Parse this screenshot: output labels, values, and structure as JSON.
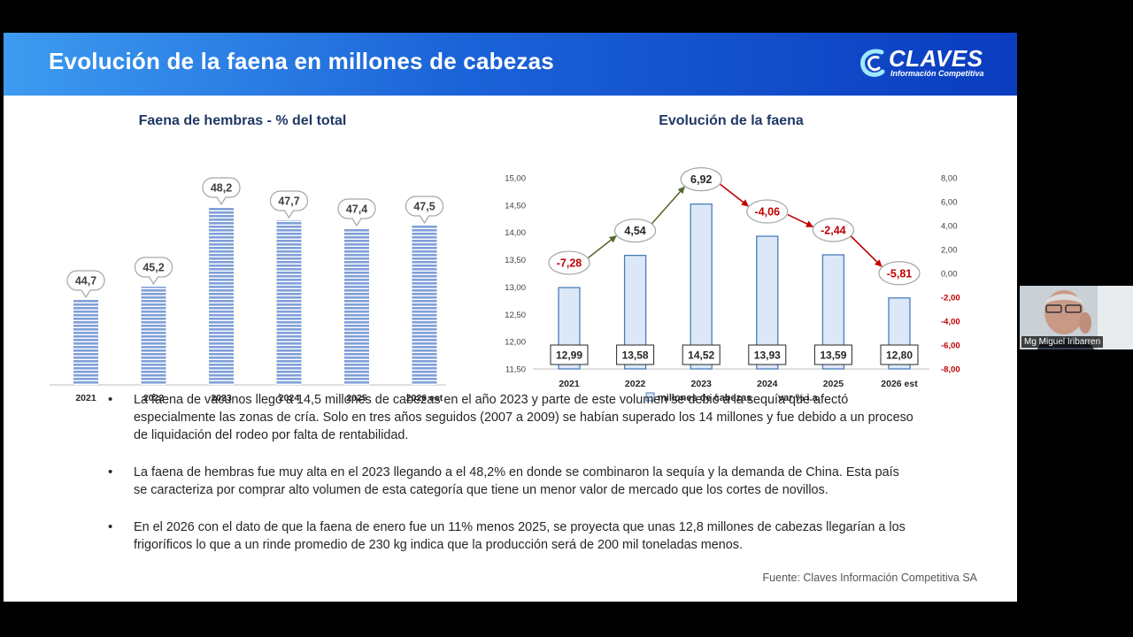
{
  "slide": {
    "title": "Evolución de la faena en millones de cabezas",
    "logo_text": "CLAVES",
    "logo_sub": "Información Competitiva"
  },
  "chart_data": [
    {
      "type": "bar",
      "title": "Faena de hembras - % del total",
      "categories": [
        "2021",
        "2022",
        "2023",
        "2024",
        "2025",
        "2026 est"
      ],
      "values": [
        44.7,
        45.2,
        48.2,
        47.7,
        47.4,
        47.5
      ],
      "value_labels": [
        "44,7",
        "45,2",
        "48,2",
        "47,7",
        "47,4",
        "47,5"
      ],
      "ylim": [
        41.5,
        48.7
      ],
      "bar_color": "#7f9fd8"
    },
    {
      "type": "bar",
      "title": "Evolución de la faena",
      "categories": [
        "2021",
        "2022",
        "2023",
        "2024",
        "2025",
        "2026 est"
      ],
      "series": [
        {
          "name": "millones de cabezas",
          "values": [
            12.99,
            13.58,
            14.52,
            13.93,
            13.59,
            12.8
          ],
          "value_labels": [
            "12,99",
            "13,58",
            "14,52",
            "13,93",
            "13,59",
            "12,80"
          ]
        },
        {
          "name": "var % i.a.",
          "values": [
            -7.28,
            4.54,
            6.92,
            -4.06,
            -2.44,
            -5.81
          ],
          "value_labels": [
            "-7,28",
            "4,54",
            "6,92",
            "-4,06",
            "-2,44",
            "-5,81"
          ]
        }
      ],
      "y_left": {
        "ylim": [
          11.5,
          15.0
        ],
        "ticks": [
          11.5,
          12.0,
          12.5,
          13.0,
          13.5,
          14.0,
          14.5,
          15.0
        ],
        "tick_labels": [
          "11,50",
          "12,00",
          "12,50",
          "13,00",
          "13,50",
          "14,00",
          "14,50",
          "15,00"
        ]
      },
      "y_right": {
        "ylim": [
          -8,
          8
        ],
        "ticks": [
          -8,
          -6,
          -4,
          -2,
          0,
          2,
          4,
          6,
          8
        ],
        "tick_labels": [
          "-8,00",
          "-6,00",
          "-4,00",
          "-2,00",
          "0,00",
          "2,00",
          "4,00",
          "6,00",
          "8,00"
        ]
      },
      "bar_fill": "#dce8f7",
      "bar_stroke": "#4a7ebb",
      "up_arrow_color": "#556b2f",
      "down_arrow_color": "#c00000",
      "negative_label_color": "#c00000",
      "legend_position": "bottom"
    }
  ],
  "bullets": [
    "La faena de vacunos llegó a 14,5 millones de cabezas en el año 2023 y parte de este volumen se debió a la sequía que afectó especialmente las zonas de cría. Solo en tres años seguidos (2007 a 2009) se habían superado los 14 millones y fue debido a un proceso de liquidación del rodeo por falta de rentabilidad.",
    "La faena de hembras fue muy alta en el 2023 llegando a el 48,2% en donde se combinaron la sequía y la demanda de China. Esta país se caracteriza por comprar alto volumen de esta categoría que tiene un menor valor de mercado que los cortes de novillos.",
    "En  el 2026  con el dato de que la faena de enero fue un 11% menos 2025, se proyecta que unas 12,8 millones de cabezas llegarían a los frigoríficos lo que a un rinde promedio de 230 kg indica que la producción será de 200 mil toneladas menos."
  ],
  "source": "Fuente: Claves Información Competitiva SA",
  "webcam": {
    "name": "Mg Miguel Iribarren"
  }
}
